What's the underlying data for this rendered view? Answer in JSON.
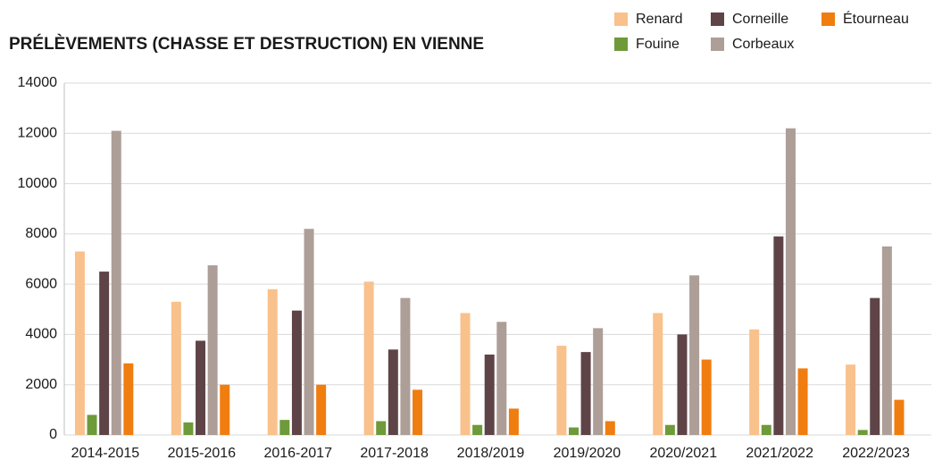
{
  "chart_data": {
    "type": "bar",
    "title": "PRÉLÈVEMENTS (CHASSE ET DESTRUCTION) EN VIENNE",
    "categories": [
      "2014-2015",
      "2015-2016",
      "2016-2017",
      "2017-2018",
      "2018/2019",
      "2019/2020",
      "2020/2021",
      "2021/2022",
      "2022/2023"
    ],
    "series": [
      {
        "name": "Renard",
        "color": "#f9c18c",
        "values": [
          7300,
          5300,
          5800,
          6100,
          4850,
          3550,
          4850,
          4200,
          2800
        ]
      },
      {
        "name": "Fouine",
        "color": "#6e9a3a",
        "values": [
          800,
          500,
          600,
          550,
          400,
          300,
          400,
          400,
          200
        ]
      },
      {
        "name": "Corneille",
        "color": "#5e4447",
        "values": [
          6500,
          3750,
          4950,
          3400,
          3200,
          3300,
          4000,
          7900,
          5450
        ]
      },
      {
        "name": "Corbeaux",
        "color": "#ad9e98",
        "values": [
          12100,
          6750,
          8200,
          5450,
          4500,
          4250,
          6350,
          12200,
          7500
        ]
      },
      {
        "name": "Étourneau",
        "color": "#f07d10",
        "values": [
          2850,
          2000,
          2000,
          1800,
          1050,
          550,
          3000,
          2650,
          1400
        ]
      }
    ],
    "ylim": [
      0,
      14000
    ],
    "yticks": [
      0,
      2000,
      4000,
      6000,
      8000,
      10000,
      12000,
      14000
    ],
    "grid": true
  }
}
